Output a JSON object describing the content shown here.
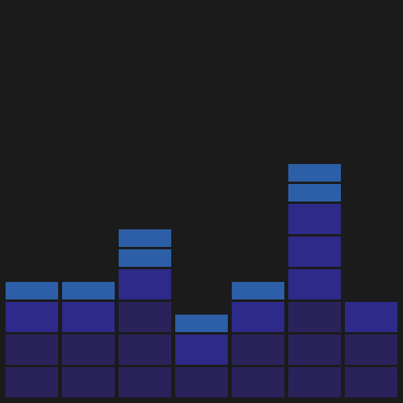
{
  "visualizer": {
    "columns": [
      {
        "levels": [
          "low",
          "low",
          "mid",
          "high"
        ]
      },
      {
        "levels": [
          "low",
          "low",
          "mid",
          "high"
        ]
      },
      {
        "levels": [
          "low",
          "low",
          "low",
          "mid",
          "high",
          "high"
        ]
      },
      {
        "levels": [
          "low",
          "mid",
          "high"
        ]
      },
      {
        "levels": [
          "low",
          "low",
          "mid",
          "high"
        ]
      },
      {
        "levels": [
          "low",
          "low",
          "low",
          "mid",
          "mid",
          "mid",
          "high",
          "high"
        ]
      },
      {
        "levels": [
          "low",
          "low",
          "mid"
        ]
      }
    ],
    "colors": {
      "background": "#1b1b1b",
      "low": "#2a235b",
      "mid": "#2d2a89",
      "high": "#2c5fa7"
    }
  }
}
